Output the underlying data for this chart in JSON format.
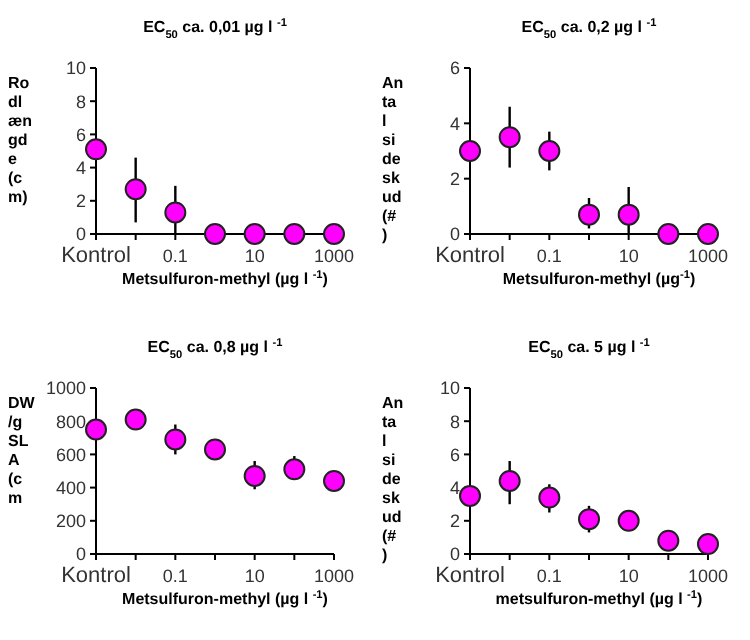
{
  "chart_data": [
    {
      "type": "scatter",
      "title": "EC$_{50}$ ca. 0,01 µg l $^{-1}$",
      "xlabel": "Metsulfuron-methyl (µg l $^{-1}$)",
      "ylabel": "Rodlængde (cm)",
      "categories": [
        "Kontrol",
        null,
        "0.1",
        null,
        "10",
        null,
        "1000"
      ],
      "ylim": [
        0,
        10
      ],
      "yticks": [
        0,
        2,
        4,
        6,
        8,
        10
      ],
      "marker": "circle",
      "grid": false,
      "series": [
        {
          "color": "#ff00ff",
          "values": [
            5.1,
            2.7,
            1.3,
            0,
            0,
            0,
            0
          ],
          "errors": [
            null,
            [
              0.7,
              4.6
            ],
            [
              0,
              2.9
            ],
            null,
            null,
            null,
            null
          ]
        }
      ]
    },
    {
      "type": "scatter",
      "title": "EC$_{50}$ ca. 0,2 µg l $^{-1}$",
      "xlabel": "Metsulfuron-methyl (µg$^{-1}$)",
      "ylabel": "Antal sideskud (#)",
      "categories": [
        "Kontrol",
        null,
        "0.1",
        null,
        "10",
        null,
        "1000"
      ],
      "ylim": [
        0,
        6
      ],
      "yticks": [
        0,
        2,
        4,
        6
      ],
      "marker": "circle",
      "grid": false,
      "series": [
        {
          "color": "#ff00ff",
          "values": [
            3,
            3.5,
            3,
            0.7,
            0.7,
            0,
            0
          ],
          "errors": [
            null,
            [
              2.4,
              4.6
            ],
            [
              2.3,
              3.7
            ],
            [
              0.2,
              1.3
            ],
            [
              0,
              1.7
            ],
            null,
            null
          ]
        }
      ]
    },
    {
      "type": "scatter",
      "title": "EC$_{50}$ ca. 0,8 µg l $^{-1}$",
      "xlabel": "Metsulfuron-methyl (µg l $^{-1}$)",
      "ylabel": "DW/g SLA (cm",
      "categories": [
        "Kontrol",
        null,
        "0.1",
        null,
        "10",
        null,
        "1000"
      ],
      "ylim": [
        0,
        1000
      ],
      "yticks": [
        0,
        200,
        400,
        600,
        800,
        1000
      ],
      "marker": "circle",
      "grid": false,
      "series": [
        {
          "color": "#ff00ff",
          "values": [
            750,
            810,
            690,
            630,
            470,
            510,
            440
          ],
          "errors": [
            null,
            null,
            [
              600,
              780
            ],
            null,
            [
              390,
              560
            ],
            [
              450,
              590
            ],
            null
          ]
        }
      ]
    },
    {
      "type": "scatter",
      "title": "EC$_{50}$ ca. 5 µg l $^{-1}$",
      "xlabel": "metsulfuron-methyl (µg l $^{-1}$)",
      "ylabel": "Antal sideskud (#)",
      "categories": [
        "Kontrol",
        null,
        "0.1",
        null,
        "10",
        null,
        "1000"
      ],
      "ylim": [
        0,
        10
      ],
      "yticks": [
        0,
        2,
        4,
        6,
        8,
        10
      ],
      "marker": "circle",
      "grid": false,
      "series": [
        {
          "color": "#ff00ff",
          "values": [
            3.5,
            4.4,
            3.4,
            2.1,
            2.0,
            0.8,
            0.6
          ],
          "errors": [
            null,
            [
              3.0,
              5.6
            ],
            [
              2.5,
              4.2
            ],
            [
              1.3,
              2.9
            ],
            null,
            null,
            null
          ]
        }
      ]
    }
  ]
}
